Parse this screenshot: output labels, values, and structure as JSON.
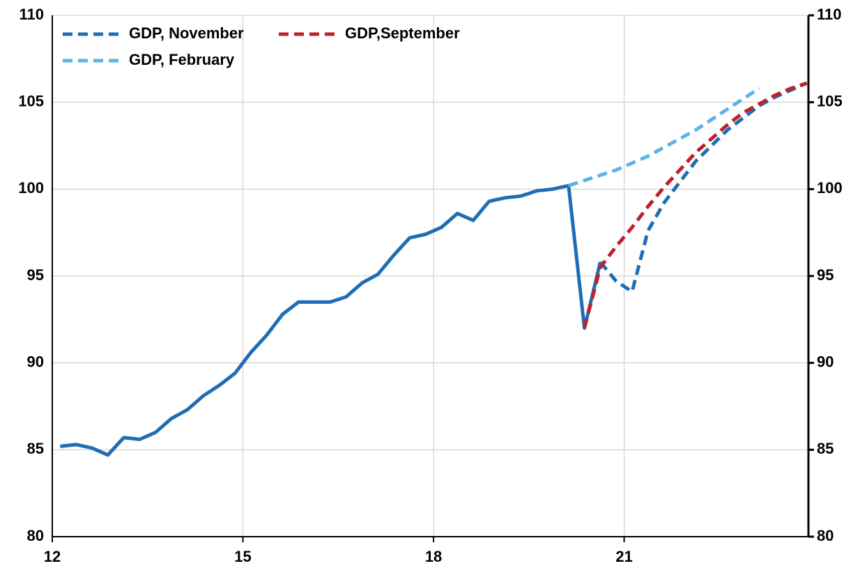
{
  "chart_data": {
    "type": "line",
    "xlim": [
      12,
      23.9
    ],
    "xticks": [
      12,
      15,
      18,
      21
    ],
    "ylim": [
      80,
      110
    ],
    "yticks": [
      80,
      85,
      90,
      95,
      100,
      105,
      110
    ],
    "y2lim": [
      80,
      110
    ],
    "y2ticks": [
      80,
      85,
      90,
      95,
      100,
      105,
      110
    ],
    "grid": true,
    "legend": "upper left",
    "series": [
      {
        "color": "#1f6db3",
        "dash": false,
        "x": [
          12.125,
          12.375,
          12.625,
          12.875,
          13.125,
          13.375,
          13.625,
          13.875,
          14.125,
          14.375,
          14.625,
          14.875,
          15.125,
          15.375,
          15.625,
          15.875,
          16.125,
          16.375,
          16.625,
          16.875,
          17.125,
          17.375,
          17.625,
          17.875,
          18.125,
          18.375,
          18.625,
          18.875,
          19.125,
          19.375,
          19.625,
          19.875,
          20.125,
          20.375,
          20.625
        ],
        "values": [
          85.2,
          85.3,
          85.1,
          84.7,
          85.7,
          85.6,
          86.0,
          86.8,
          87.3,
          88.1,
          88.7,
          89.4,
          90.6,
          91.6,
          92.8,
          93.5,
          93.5,
          93.5,
          93.8,
          94.6,
          95.1,
          96.2,
          97.2,
          97.4,
          97.8,
          98.6,
          98.2,
          99.3,
          99.5,
          99.6,
          99.9,
          100.0,
          100.2,
          92.0,
          95.8
        ]
      },
      {
        "name": "GDP, November",
        "color": "#1f6db3",
        "dash": true,
        "x": [
          20.625,
          20.875,
          21.125,
          21.375,
          21.625,
          21.875,
          22.125,
          22.375,
          22.625,
          22.875,
          23.125,
          23.375,
          23.625,
          23.875
        ],
        "values": [
          95.8,
          94.7,
          94.1,
          97.6,
          99.2,
          100.4,
          101.6,
          102.5,
          103.4,
          104.1,
          104.8,
          105.3,
          105.7,
          106.1
        ]
      },
      {
        "name": "GDP,September",
        "color": "#c0202a",
        "dash": true,
        "x": [
          20.375,
          20.625,
          20.875,
          21.125,
          21.375,
          21.625,
          21.875,
          22.125,
          22.375,
          22.625,
          22.875,
          23.125,
          23.375,
          23.625,
          23.875
        ],
        "values": [
          92.0,
          95.5,
          96.7,
          97.8,
          99.0,
          100.1,
          101.1,
          102.1,
          102.9,
          103.7,
          104.4,
          104.9,
          105.4,
          105.8,
          106.1
        ]
      },
      {
        "name": "GDP, February",
        "color": "#5cb3ea",
        "dash": true,
        "x": [
          20.125,
          20.375,
          20.625,
          20.875,
          21.125,
          21.375,
          21.625,
          21.875,
          22.125,
          22.375,
          22.625,
          22.875,
          23.125
        ],
        "values": [
          100.2,
          100.5,
          100.8,
          101.1,
          101.5,
          101.9,
          102.4,
          102.9,
          103.4,
          104.0,
          104.6,
          105.2,
          105.8
        ]
      }
    ]
  }
}
